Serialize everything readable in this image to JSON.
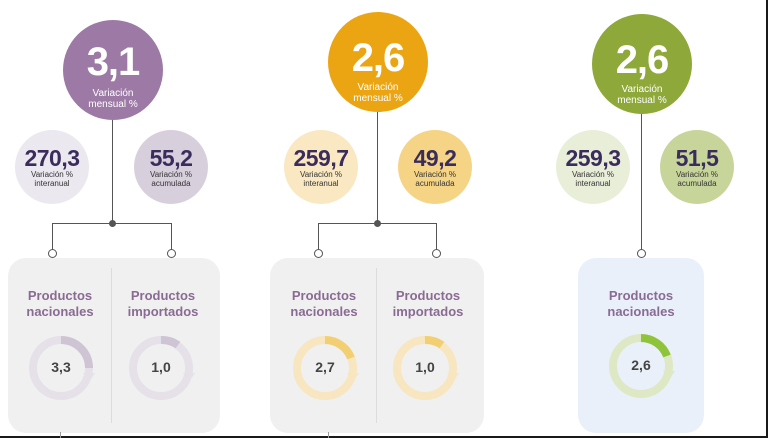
{
  "groups": [
    {
      "main": {
        "value": "3,1",
        "label": "Variación mensual %"
      },
      "left": {
        "value": "270,3",
        "label_1": "Variación %",
        "label_2": "interanual"
      },
      "right": {
        "value": "55,2",
        "label_1": "Variación %",
        "label_2": "acumulada"
      },
      "columns": [
        {
          "title_1": "Productos",
          "title_2": "nacionales",
          "value": "3,3",
          "progress": 0.25
        },
        {
          "title_1": "Productos",
          "title_2": "importados",
          "value": "1,0",
          "progress": 0.1
        }
      ],
      "colors": {
        "main": "#9c7aa5",
        "left_bg": "#ece8ef",
        "right_bg": "#d8cfdc",
        "text": "#3a2d5c",
        "panel": "#f0f0f0",
        "ring_bg": "#e6e1e8",
        "ring_fg": "#cfc4d3",
        "title": "#8a6b93"
      }
    },
    {
      "main": {
        "value": "2,6",
        "label": "Variación mensual %"
      },
      "left": {
        "value": "259,7",
        "label_1": "Variación %",
        "label_2": "interanual"
      },
      "right": {
        "value": "49,2",
        "label_1": "Variación %",
        "label_2": "acumulada"
      },
      "columns": [
        {
          "title_1": "Productos",
          "title_2": "nacionales",
          "value": "2,7",
          "progress": 0.22
        },
        {
          "title_1": "Productos",
          "title_2": "importados",
          "value": "1,0",
          "progress": 0.1
        }
      ],
      "colors": {
        "main": "#eba512",
        "left_bg": "#fae8c2",
        "right_bg": "#f5d486",
        "text": "#3a2d5c",
        "panel": "#f0f0f0",
        "ring_bg": "#f7e6bf",
        "ring_fg": "#f2cf72",
        "title": "#8a6b93"
      }
    },
    {
      "main": {
        "value": "2,6",
        "label": "Variación mensual %"
      },
      "left": {
        "value": "259,3",
        "label_1": "Variación %",
        "label_2": "interanual"
      },
      "right": {
        "value": "51,5",
        "label_1": "Variación %",
        "label_2": "acumulada"
      },
      "columns": [
        {
          "title_1": "Productos",
          "title_2": "nacionales",
          "value": "2,6",
          "progress": 0.22
        }
      ],
      "colors": {
        "main": "#8fa83a",
        "left_bg": "#e9eed9",
        "right_bg": "#c8d59a",
        "text": "#3a2d5c",
        "panel": "#eaf0fa",
        "ring_bg": "#dfe8c4",
        "ring_fg": "#8fc43a",
        "title": "#8a6b93"
      }
    }
  ]
}
